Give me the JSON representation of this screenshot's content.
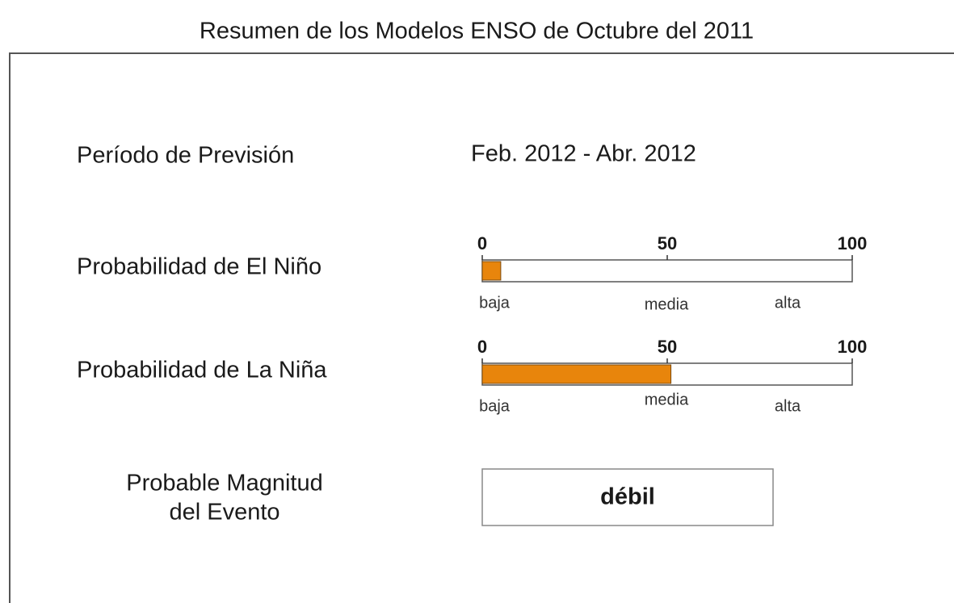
{
  "title": "Resumen de los Modelos ENSO de Octubre del 2011",
  "period": {
    "label": "Período de Previsión",
    "value": "Feb. 2012 - Abr. 2012"
  },
  "gauges": [
    {
      "label": "Probabilidad de El Niño",
      "value": 5,
      "color": "#e8850c",
      "range": [
        0,
        100
      ],
      "ticks": [
        0,
        50,
        100
      ],
      "levels": [
        "baja",
        "media",
        "alta"
      ]
    },
    {
      "label": "Probabilidad de La Niña",
      "value": 51,
      "color": "#e8850c",
      "range": [
        0,
        100
      ],
      "ticks": [
        0,
        50,
        100
      ],
      "levels": [
        "baja",
        "media",
        "alta"
      ]
    }
  ],
  "magnitude": {
    "label": [
      "Probable Magnitud",
      "del Evento"
    ],
    "value": "débil"
  }
}
